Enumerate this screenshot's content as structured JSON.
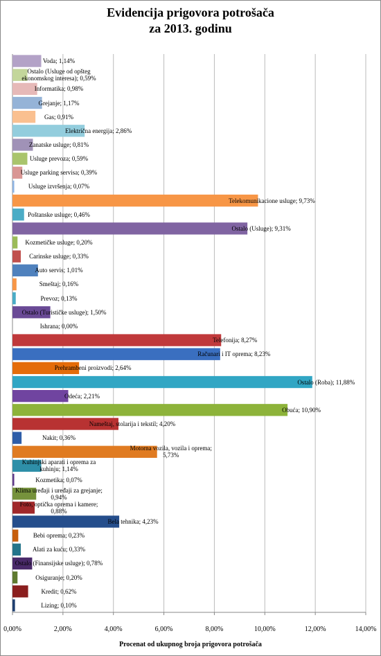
{
  "chart_data": {
    "type": "bar",
    "orientation": "horizontal",
    "title": [
      "Evidencija prigovora potrošača",
      "za 2013. godinu"
    ],
    "x_label": "Procenat od ukupnog broja prigovora potrošača",
    "values": [
      1.14,
      0.59,
      0.98,
      1.17,
      0.91,
      2.86,
      0.81,
      0.59,
      0.39,
      0.07,
      9.73,
      0.46,
      9.31,
      0.2,
      0.33,
      1.01,
      0.16,
      0.13,
      1.5,
      0.0,
      8.27,
      8.23,
      2.64,
      11.88,
      2.21,
      10.9,
      4.2,
      0.36,
      5.73,
      1.14,
      0.07,
      0.94,
      0.88,
      4.23,
      0.23,
      0.33,
      0.78,
      0.2,
      0.62,
      0.1
    ],
    "value_labels": [
      "Voda; 1,14%",
      "Ostalo (Usluge  od opšteg ekonomskog interesa); 0,59%",
      "Informatika; 0,98%",
      "Grejanje; 1,17%",
      "Gas; 0,91%",
      "Električna energija; 2,86%",
      "Zanatske usluge; 0,81%",
      "Usluge prevoza; 0,59%",
      "Usluge parking servisa; 0,39%",
      "Usluge izvršenja; 0,07%",
      "Telekomunikacione usluge; 9,73%",
      "Poštanske usluge; 0,46%",
      "Ostalo (Usluge);  9,31%",
      "Kozmetičke usluge; 0,20%",
      "Carinske usluge; 0,33%",
      "Auto servis;  1,01%",
      "Smeštaj; 0,16%",
      "Prevoz; 0,13%",
      "Ostalo (Turističke usluge); 1,50%",
      "Ishrana; 0,00%",
      "Telefonija; 8,27%",
      "Računari i IT oprema; 8,23%",
      "Prehrambeni proizvodi; 2,64%",
      "Ostalo (Roba); 11,88%",
      "Odeća; 2,21%",
      "Obuća; 10,90%",
      "Nameštaj, stolarija i tekstil; 4,20%",
      "Nakit; 0,36%",
      "Motorna vozila, vozila i oprema; 5,73%",
      "Kuhinjski aparati i oprema za kuhinju; 1,14%",
      "Kozmetika; 0,07%",
      "Klima uređaji i uređaji za grejanje; 0,94%",
      "Foto, optička oprema i kamere; 0,88%",
      "Bela tehnika; 4,23%",
      "Bebi oprema; 0,23%",
      "Alati za kuću; 0,33%",
      "Ostalo (Finansijske usluge); 0,78%",
      "Osiguranje; 0,20%",
      "Kredit; 0,62%",
      "Lizing; 0,10%"
    ],
    "colors": [
      "#b3a2c7",
      "#c3d69b",
      "#e6b9b8",
      "#95b3d7",
      "#fac090",
      "#93cddd",
      "#a092b7",
      "#a9c46c",
      "#d99694",
      "#8eb4e3",
      "#f79646",
      "#4bacc6",
      "#8064a2",
      "#9bbb59",
      "#c0504d",
      "#4f81bd",
      "#f79646",
      "#4bacc6",
      "#6a4a96",
      "#8bad47",
      "#c0393b",
      "#3a6fc0",
      "#e46c0a",
      "#31a6c4",
      "#7044a0",
      "#8db33a",
      "#b83232",
      "#2e5da8",
      "#e07b21",
      "#2e8fa8",
      "#5f3a8a",
      "#76923c",
      "#a0282a",
      "#254e8c",
      "#c65f0e",
      "#24748a",
      "#4a2a6a",
      "#5f7a30",
      "#8a1e1e",
      "#1f3f70"
    ],
    "xlim": [
      0,
      14
    ],
    "xticks": [
      {
        "value": 0,
        "label": "0,00%"
      },
      {
        "value": 2,
        "label": "2,00%"
      },
      {
        "value": 4,
        "label": "4,00%"
      },
      {
        "value": 6,
        "label": "6,00%"
      },
      {
        "value": 8,
        "label": "8,00%"
      },
      {
        "value": 10,
        "label": "10,00%"
      },
      {
        "value": 12,
        "label": "12,00%"
      },
      {
        "value": 14,
        "label": "14,00%"
      }
    ],
    "grid": true
  }
}
